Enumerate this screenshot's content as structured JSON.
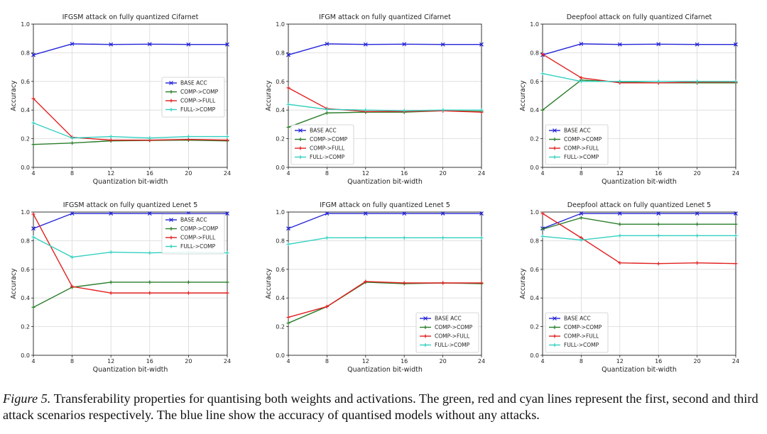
{
  "colors": {
    "base": "#2323d8",
    "comp_comp": "#2a7d2a",
    "comp_full": "#e02020",
    "full_comp": "#33d0c0"
  },
  "chart_data": [
    {
      "type": "line",
      "title": "IFGSM attack on fully quantized Cifarnet",
      "xlabel": "Quantization bit-width",
      "ylabel": "Accuracy",
      "x": [
        4,
        8,
        12,
        16,
        20,
        24
      ],
      "xticks": [
        "4",
        "8",
        "12",
        "16",
        "20",
        "24"
      ],
      "yticks": [
        "0.0",
        "0.2",
        "0.4",
        "0.6",
        "0.8",
        "1.0"
      ],
      "ylim": [
        0,
        1
      ],
      "legend": "center-right",
      "series": [
        {
          "name": "BASE ACC",
          "values": [
            0.785,
            0.862,
            0.858,
            0.86,
            0.858,
            0.858
          ]
        },
        {
          "name": "COMP->COMP",
          "values": [
            0.16,
            0.17,
            0.185,
            0.188,
            0.19,
            0.185
          ]
        },
        {
          "name": "COMP->FULL",
          "values": [
            0.48,
            0.21,
            0.19,
            0.19,
            0.195,
            0.19
          ]
        },
        {
          "name": "FULL->COMP",
          "values": [
            0.31,
            0.205,
            0.215,
            0.205,
            0.215,
            0.215
          ]
        }
      ]
    },
    {
      "type": "line",
      "title": "IFGM attack on fully quantized Cifarnet",
      "xlabel": "Quantization bit-width",
      "ylabel": "Accuracy",
      "x": [
        4,
        8,
        12,
        16,
        20,
        24
      ],
      "xticks": [
        "4",
        "8",
        "12",
        "16",
        "20",
        "24"
      ],
      "yticks": [
        "0.0",
        "0.2",
        "0.4",
        "0.6",
        "0.8",
        "1.0"
      ],
      "ylim": [
        0,
        1
      ],
      "legend": "bottom-left",
      "series": [
        {
          "name": "BASE ACC",
          "values": [
            0.785,
            0.862,
            0.858,
            0.86,
            0.858,
            0.858
          ]
        },
        {
          "name": "COMP->COMP",
          "values": [
            0.28,
            0.38,
            0.385,
            0.385,
            0.395,
            0.39
          ]
        },
        {
          "name": "COMP->FULL",
          "values": [
            0.555,
            0.41,
            0.39,
            0.39,
            0.395,
            0.385
          ]
        },
        {
          "name": "FULL->COMP",
          "values": [
            0.44,
            0.405,
            0.4,
            0.395,
            0.4,
            0.4
          ]
        }
      ]
    },
    {
      "type": "line",
      "title": "Deepfool attack on fully quantized Cifarnet",
      "xlabel": "Quantization bit-width",
      "ylabel": "Accuracy",
      "x": [
        4,
        8,
        12,
        16,
        20,
        24
      ],
      "xticks": [
        "4",
        "8",
        "12",
        "16",
        "20",
        "24"
      ],
      "yticks": [
        "0.0",
        "0.2",
        "0.4",
        "0.6",
        "0.8",
        "1.0"
      ],
      "ylim": [
        0,
        1
      ],
      "legend": "bottom-left",
      "series": [
        {
          "name": "BASE ACC",
          "values": [
            0.785,
            0.862,
            0.858,
            0.86,
            0.858,
            0.858
          ]
        },
        {
          "name": "COMP->COMP",
          "values": [
            0.4,
            0.61,
            0.595,
            0.59,
            0.59,
            0.59
          ]
        },
        {
          "name": "COMP->FULL",
          "values": [
            0.79,
            0.625,
            0.59,
            0.59,
            0.595,
            0.595
          ]
        },
        {
          "name": "FULL->COMP",
          "values": [
            0.655,
            0.6,
            0.6,
            0.6,
            0.6,
            0.6
          ]
        }
      ]
    },
    {
      "type": "line",
      "title": "IFGSM attack on fully quantized Lenet 5",
      "xlabel": "Quantization bit-width",
      "ylabel": "Accuracy",
      "x": [
        4,
        8,
        12,
        16,
        20,
        24
      ],
      "xticks": [
        "4",
        "8",
        "12",
        "16",
        "20",
        "24"
      ],
      "yticks": [
        "0.0",
        "0.2",
        "0.4",
        "0.6",
        "0.8",
        "1.0"
      ],
      "ylim": [
        0,
        1
      ],
      "legend": "top-right",
      "series": [
        {
          "name": "BASE ACC",
          "values": [
            0.885,
            0.99,
            0.99,
            0.99,
            0.99,
            0.99
          ]
        },
        {
          "name": "COMP->COMP",
          "values": [
            0.335,
            0.475,
            0.51,
            0.51,
            0.51,
            0.51
          ]
        },
        {
          "name": "COMP->FULL",
          "values": [
            0.985,
            0.48,
            0.435,
            0.435,
            0.435,
            0.435
          ]
        },
        {
          "name": "FULL->COMP",
          "values": [
            0.825,
            0.685,
            0.72,
            0.715,
            0.72,
            0.715
          ]
        }
      ]
    },
    {
      "type": "line",
      "title": "IFGM attack on fully quantized Lenet 5",
      "xlabel": "Quantization bit-width",
      "ylabel": "Accuracy",
      "x": [
        4,
        8,
        12,
        16,
        20,
        24
      ],
      "xticks": [
        "4",
        "8",
        "12",
        "16",
        "20",
        "24"
      ],
      "yticks": [
        "0.0",
        "0.2",
        "0.4",
        "0.6",
        "0.8",
        "1.0"
      ],
      "ylim": [
        0,
        1
      ],
      "legend": "bottom-right",
      "series": [
        {
          "name": "BASE ACC",
          "values": [
            0.885,
            0.99,
            0.99,
            0.99,
            0.99,
            0.99
          ]
        },
        {
          "name": "COMP->COMP",
          "values": [
            0.225,
            0.34,
            0.51,
            0.5,
            0.505,
            0.5
          ]
        },
        {
          "name": "COMP->FULL",
          "values": [
            0.265,
            0.34,
            0.515,
            0.505,
            0.505,
            0.505
          ]
        },
        {
          "name": "FULL->COMP",
          "values": [
            0.775,
            0.82,
            0.82,
            0.82,
            0.82,
            0.82
          ]
        }
      ]
    },
    {
      "type": "line",
      "title": "Deepfool attack on fully quantized Lenet 5",
      "xlabel": "Quantization bit-width",
      "ylabel": "Accuracy",
      "x": [
        4,
        8,
        12,
        16,
        20,
        24
      ],
      "xticks": [
        "4",
        "8",
        "12",
        "16",
        "20",
        "24"
      ],
      "yticks": [
        "0.0",
        "0.2",
        "0.4",
        "0.6",
        "0.8",
        "1.0"
      ],
      "ylim": [
        0,
        1
      ],
      "legend": "bottom-left",
      "series": [
        {
          "name": "BASE ACC",
          "values": [
            0.885,
            0.99,
            0.99,
            0.99,
            0.99,
            0.99
          ]
        },
        {
          "name": "COMP->COMP",
          "values": [
            0.88,
            0.96,
            0.915,
            0.915,
            0.915,
            0.915
          ]
        },
        {
          "name": "COMP->FULL",
          "values": [
            0.99,
            0.82,
            0.645,
            0.64,
            0.645,
            0.64
          ]
        },
        {
          "name": "FULL->COMP",
          "values": [
            0.83,
            0.805,
            0.835,
            0.835,
            0.835,
            0.835
          ]
        }
      ]
    }
  ],
  "caption": {
    "label": "Figure 5.",
    "text": " Transferability properties for quantising both weights and activations. The green, red and cyan lines represent the first, second and third attack scenarios respectively. The blue line show the accuracy of quantised models without any attacks."
  }
}
